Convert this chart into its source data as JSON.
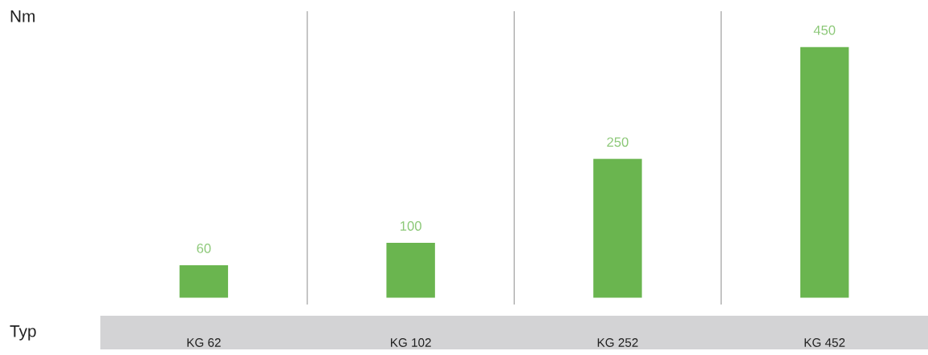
{
  "chart_data": {
    "type": "bar",
    "ylabel": "Nm",
    "xlabel": "Typ",
    "categories": [
      "KG 62",
      "KG 102",
      "KG 252",
      "KG 452"
    ],
    "values": [
      60,
      100,
      250,
      450
    ],
    "color": "#6ab54f",
    "data_labels": true,
    "grid": "x",
    "tick_labels": "x"
  }
}
